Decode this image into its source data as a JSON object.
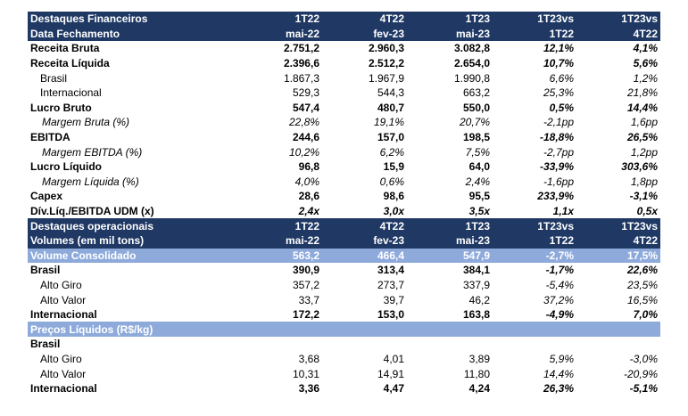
{
  "financial": {
    "header": [
      [
        "Destaques Financeiros",
        "1T22",
        "4T22",
        "1T23",
        "1T23vs",
        "1T23vs"
      ],
      [
        "Data Fechamento",
        "mai-22",
        "fev-23",
        "mai-23",
        "1T22",
        "4T22"
      ]
    ],
    "rows": [
      [
        "Receita Bruta",
        "2.751,2",
        "2.960,3",
        "3.082,8",
        "12,1%",
        "4,1%"
      ],
      [
        "Receita Líquida",
        "2.396,6",
        "2.512,2",
        "2.654,0",
        "10,7%",
        "5,6%"
      ],
      [
        "Brasil",
        "1.867,3",
        "1.967,9",
        "1.990,8",
        "6,6%",
        "1,2%"
      ],
      [
        "Internacional",
        "529,3",
        "544,3",
        "663,2",
        "25,3%",
        "21,8%"
      ],
      [
        "Lucro Bruto",
        "547,4",
        "480,7",
        "550,0",
        "0,5%",
        "14,4%"
      ],
      [
        "Margem Bruta (%)",
        "22,8%",
        "19,1%",
        "20,7%",
        "-2,1pp",
        "1,6pp"
      ],
      [
        "EBITDA",
        "244,6",
        "157,0",
        "198,5",
        "-18,8%",
        "26,5%"
      ],
      [
        "Margem EBITDA (%)",
        "10,2%",
        "6,2%",
        "7,5%",
        "-2,7pp",
        "1,2pp"
      ],
      [
        "Lucro Líquido",
        "96,8",
        "15,9",
        "64,0",
        "-33,9%",
        "303,6%"
      ],
      [
        "Margem Líquida (%)",
        "4,0%",
        "0,6%",
        "2,4%",
        "-1,6pp",
        "1,8pp"
      ],
      [
        "Capex",
        "28,6",
        "98,6",
        "95,5",
        "233,9%",
        "-3,1%"
      ],
      [
        "Dív.Líq./EBITDA UDM (x)",
        "2,4x",
        "3,0x",
        "3,5x",
        "1,1x",
        "0,5x"
      ]
    ]
  },
  "operational": {
    "header": [
      [
        "Destaques operacionais",
        "1T22",
        "4T22",
        "1T23",
        "1T23vs",
        "1T23vs"
      ],
      [
        "Volumes (em mil tons)",
        "mai-22",
        "fev-23",
        "mai-23",
        "1T22",
        "4T22"
      ]
    ],
    "consolidated": [
      "Volume Consolidado",
      "563,2",
      "466,4",
      "547,9",
      "-2,7%",
      "17,5%"
    ],
    "rows": [
      [
        "Brasil",
        "390,9",
        "313,4",
        "384,1",
        "-1,7%",
        "22,6%"
      ],
      [
        "Alto Giro",
        "357,2",
        "273,7",
        "337,9",
        "-5,4%",
        "23,5%"
      ],
      [
        "Alto Valor",
        "33,7",
        "39,7",
        "46,2",
        "37,2%",
        "16,5%"
      ],
      [
        "Internacional",
        "172,2",
        "153,0",
        "163,8",
        "-4,9%",
        "7,0%"
      ]
    ]
  },
  "prices": {
    "title": "Preços Líquidos (R$/kg)",
    "rows": [
      [
        "Brasil",
        "",
        "",
        "",
        "",
        ""
      ],
      [
        "Alto Giro",
        "3,68",
        "4,01",
        "3,89",
        "5,9%",
        "-3,0%"
      ],
      [
        "Alto Valor",
        "10,31",
        "14,91",
        "11,80",
        "14,4%",
        "-20,9%"
      ],
      [
        "Internacional",
        "3,36",
        "4,47",
        "4,24",
        "26,3%",
        "-5,1%"
      ]
    ]
  }
}
